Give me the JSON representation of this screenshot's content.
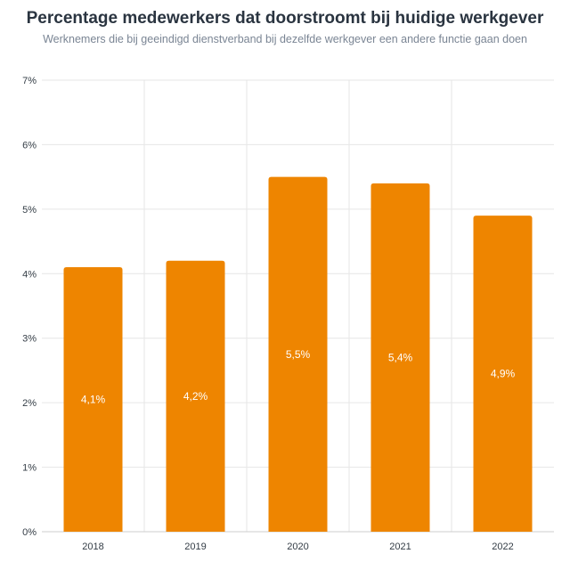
{
  "chart_data": {
    "type": "bar",
    "title": "Percentage medewerkers dat doorstroomt bij huidige werkgever",
    "subtitle": "Werknemers die bij geeindigd dienstverband bij dezelfde werkgever een andere functie gaan doen",
    "categories": [
      "2018",
      "2019",
      "2020",
      "2021",
      "2022"
    ],
    "values": [
      4.1,
      4.2,
      5.5,
      5.4,
      4.9
    ],
    "value_labels": [
      "4,1%",
      "4,2%",
      "5,5%",
      "5,4%",
      "4,9%"
    ],
    "yticks": [
      0,
      1,
      2,
      3,
      4,
      5,
      6,
      7
    ],
    "ytick_labels": [
      "0%",
      "1%",
      "2%",
      "3%",
      "4%",
      "5%",
      "6%",
      "7%"
    ],
    "ylim": [
      0,
      7
    ],
    "grid": true,
    "colors": {
      "bar": "#ee8500",
      "grid": "#e6e6e6",
      "axis": "#cccccc"
    }
  }
}
